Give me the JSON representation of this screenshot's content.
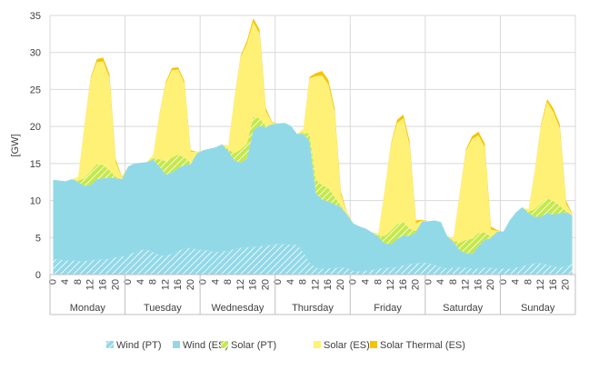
{
  "chart_data": {
    "type": "area",
    "stacked": true,
    "ylabel": "[GW]",
    "ylim": [
      0,
      35
    ],
    "yticks": [
      0,
      5,
      10,
      15,
      20,
      25,
      30,
      35
    ],
    "grid": true,
    "legend_position": "bottom",
    "hour_tick_labels": [
      "0",
      "4",
      "8",
      "12",
      "16",
      "20"
    ],
    "days": [
      "Monday",
      "Tuesday",
      "Wednesday",
      "Thursday",
      "Friday",
      "Saturday",
      "Sunday"
    ],
    "x_step_hours": 2,
    "x_count": 84,
    "series": [
      {
        "name": "Wind (PT)",
        "color": "#92D9E8",
        "pattern": "hatched",
        "values": [
          2.1,
          2.0,
          1.9,
          1.9,
          1.8,
          1.8,
          1.9,
          2.0,
          2.0,
          2.1,
          2.3,
          2.4,
          2.6,
          3.0,
          3.3,
          3.4,
          3.0,
          2.6,
          2.5,
          2.8,
          3.2,
          3.5,
          3.6,
          3.4,
          3.3,
          3.2,
          3.0,
          3.1,
          3.2,
          3.4,
          3.6,
          3.7,
          3.7,
          3.8,
          3.9,
          4.0,
          4.1,
          4.1,
          4.0,
          4.0,
          3.0,
          1.6,
          0.9,
          0.8,
          0.8,
          0.9,
          0.9,
          0.9,
          0.5,
          0.4,
          0.5,
          0.6,
          0.8,
          0.9,
          0.9,
          1.0,
          1.2,
          1.4,
          1.5,
          1.6,
          1.5,
          1.3,
          1.0,
          0.8,
          0.9,
          1.0,
          0.9,
          0.8,
          0.8,
          0.9,
          0.9,
          0.8,
          0.8,
          0.8,
          0.9,
          1.1,
          1.3,
          1.5,
          1.5,
          1.3,
          1.1,
          0.9,
          1.1,
          1.4
        ]
      },
      {
        "name": "Wind (ES)",
        "color": "#92D9E8",
        "values": [
          10.7,
          10.7,
          10.7,
          11.0,
          10.7,
          10.2,
          10.2,
          10.9,
          11.0,
          11.0,
          10.7,
          10.5,
          12.0,
          12.0,
          11.8,
          11.8,
          12.5,
          12.0,
          11.0,
          11.0,
          11.2,
          11.3,
          11.3,
          13.0,
          13.5,
          13.8,
          14.2,
          14.5,
          13.5,
          12.0,
          11.5,
          12.0,
          15.8,
          16.3,
          16.0,
          16.3,
          16.3,
          16.4,
          16.1,
          15.0,
          16.0,
          16.4,
          10.1,
          9.3,
          9.1,
          8.6,
          8.2,
          7.2,
          6.4,
          6.1,
          5.7,
          5.1,
          4.3,
          3.3,
          3.2,
          3.8,
          4.1,
          3.8,
          4.2,
          5.6,
          5.7,
          6.0,
          6.1,
          4.4,
          3.5,
          2.3,
          2.0,
          2.0,
          3.0,
          3.8,
          4.0,
          5.0,
          5.0,
          6.5,
          7.5,
          8.0,
          7.0,
          6.3,
          6.3,
          7.0,
          7.0,
          7.4,
          7.3,
          6.6
        ]
      },
      {
        "name": "Solar (PT)",
        "color": "#C5E84A",
        "pattern": "hatched",
        "values": [
          0.0,
          0.0,
          0.0,
          0.0,
          0.2,
          1.0,
          1.8,
          2.0,
          1.8,
          1.0,
          0.2,
          0.0,
          0.0,
          0.0,
          0.0,
          0.0,
          0.2,
          1.0,
          1.8,
          2.0,
          1.8,
          1.0,
          0.2,
          0.0,
          0.0,
          0.0,
          0.0,
          0.0,
          0.2,
          1.0,
          1.8,
          2.0,
          1.8,
          1.0,
          0.2,
          0.0,
          0.0,
          0.0,
          0.0,
          0.0,
          0.2,
          1.0,
          1.8,
          2.0,
          1.8,
          1.0,
          0.2,
          0.0,
          0.0,
          0.0,
          0.0,
          0.0,
          0.2,
          1.0,
          1.8,
          2.0,
          1.8,
          1.0,
          0.2,
          0.0,
          0.0,
          0.0,
          0.0,
          0.0,
          0.2,
          1.0,
          1.8,
          2.0,
          1.8,
          1.0,
          0.2,
          0.0,
          0.0,
          0.0,
          0.0,
          0.0,
          0.2,
          1.0,
          1.8,
          2.0,
          1.8,
          1.0,
          0.2,
          0.0
        ]
      },
      {
        "name": "Solar (ES)",
        "color": "#FFF176",
        "values": [
          0.0,
          0.0,
          0.0,
          0.0,
          0.5,
          7.0,
          12.5,
          13.8,
          14.0,
          12.5,
          2.0,
          0.2,
          0.0,
          0.0,
          0.0,
          0.0,
          0.5,
          6.0,
          10.5,
          11.8,
          11.5,
          10.0,
          1.5,
          0.2,
          0.0,
          0.0,
          0.0,
          0.0,
          0.5,
          7.5,
          12.5,
          13.5,
          12.8,
          11.5,
          2.0,
          0.2,
          0.0,
          0.0,
          0.0,
          0.0,
          0.5,
          7.5,
          14.0,
          14.8,
          14.0,
          11.5,
          1.5,
          0.2,
          0.0,
          0.0,
          0.0,
          0.0,
          0.3,
          6.0,
          11.5,
          13.7,
          14.0,
          11.3,
          1.0,
          0.1,
          0.0,
          0.0,
          0.0,
          0.0,
          0.3,
          6.5,
          12.0,
          13.5,
          13.2,
          11.5,
          1.0,
          0.1,
          0.0,
          0.0,
          0.0,
          0.0,
          0.3,
          5.0,
          10.5,
          13.0,
          12.0,
          10.5,
          1.0,
          0.1
        ]
      },
      {
        "name": "Solar Thermal (ES)",
        "color": "#F5C400",
        "values": [
          0.0,
          0.0,
          0.0,
          0.0,
          0.0,
          0.1,
          0.2,
          0.4,
          0.5,
          0.5,
          0.4,
          0.1,
          0.0,
          0.0,
          0.0,
          0.0,
          0.0,
          0.1,
          0.2,
          0.3,
          0.3,
          0.3,
          0.2,
          0.0,
          0.0,
          0.0,
          0.0,
          0.0,
          0.0,
          0.1,
          0.2,
          0.4,
          0.5,
          0.5,
          0.4,
          0.1,
          0.0,
          0.0,
          0.0,
          0.0,
          0.0,
          0.2,
          0.4,
          0.6,
          0.6,
          0.5,
          0.4,
          0.1,
          0.0,
          0.0,
          0.0,
          0.0,
          0.0,
          0.1,
          0.2,
          0.4,
          0.5,
          0.5,
          0.4,
          0.1,
          0.0,
          0.0,
          0.0,
          0.0,
          0.0,
          0.1,
          0.2,
          0.4,
          0.5,
          0.5,
          0.4,
          0.1,
          0.0,
          0.0,
          0.0,
          0.0,
          0.0,
          0.1,
          0.2,
          0.4,
          0.5,
          0.5,
          0.4,
          0.1
        ]
      }
    ]
  }
}
